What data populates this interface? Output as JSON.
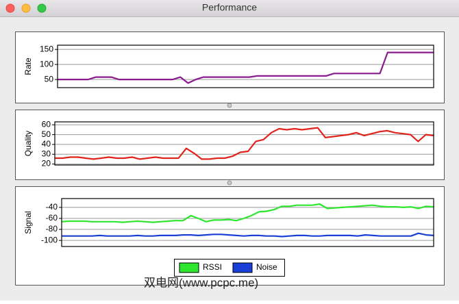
{
  "window": {
    "title": "Performance"
  },
  "watermark": "双电网(www.pcpc.me)",
  "chart_data": [
    {
      "type": "line",
      "ylabel": "Rate",
      "ylim": [
        23,
        164
      ],
      "yticks": [
        50,
        100,
        150
      ],
      "grid": true,
      "series": [
        {
          "name": "Rate",
          "color": "#8b1a8f",
          "values": [
            50,
            50,
            50,
            50,
            50,
            58,
            58,
            58,
            50,
            50,
            50,
            50,
            50,
            50,
            50,
            50,
            58,
            38,
            50,
            58,
            58,
            58,
            58,
            58,
            58,
            58,
            62,
            62,
            62,
            62,
            62,
            62,
            62,
            62,
            62,
            62,
            70,
            70,
            70,
            70,
            70,
            70,
            70,
            140,
            140,
            140,
            140,
            140,
            140,
            140
          ]
        }
      ]
    },
    {
      "type": "line",
      "ylabel": "Quality",
      "ylim": [
        19,
        63
      ],
      "yticks": [
        20,
        30,
        40,
        50,
        60
      ],
      "grid": true,
      "series": [
        {
          "name": "Quality",
          "color": "#e0231b",
          "values": [
            26,
            26,
            27,
            27,
            26,
            25,
            26,
            27,
            26,
            26,
            27,
            25,
            26,
            27,
            26,
            26,
            26,
            36,
            31,
            25,
            25,
            26,
            26,
            28,
            32,
            33,
            43,
            45,
            52,
            56,
            55,
            56,
            55,
            56,
            57,
            47,
            48,
            49,
            50,
            52,
            49,
            51,
            53,
            54,
            52,
            51,
            50,
            43,
            50,
            49
          ]
        }
      ]
    },
    {
      "type": "line",
      "ylabel": "Signal",
      "ylim": [
        -111,
        -24
      ],
      "yticks": [
        -40,
        -60,
        -80,
        -100
      ],
      "grid": true,
      "legend": "bottom",
      "series": [
        {
          "name": "RSSI",
          "color": "#2ee62e",
          "values": [
            -66,
            -65,
            -65,
            -65,
            -66,
            -66,
            -66,
            -66,
            -67,
            -66,
            -65,
            -66,
            -67,
            -66,
            -65,
            -64,
            -64,
            -55,
            -60,
            -66,
            -63,
            -63,
            -62,
            -64,
            -60,
            -55,
            -48,
            -47,
            -44,
            -38,
            -38,
            -36,
            -36,
            -36,
            -34,
            -42,
            -41,
            -40,
            -39,
            -38,
            -37,
            -36,
            -38,
            -39,
            -39,
            -40,
            -39,
            -42,
            -38,
            -39
          ]
        },
        {
          "name": "Noise",
          "color": "#1a3fd6",
          "values": [
            -92,
            -92,
            -92,
            -92,
            -92,
            -91,
            -92,
            -92,
            -92,
            -92,
            -91,
            -92,
            -92,
            -91,
            -91,
            -91,
            -90,
            -90,
            -91,
            -90,
            -89,
            -89,
            -90,
            -91,
            -92,
            -91,
            -91,
            -92,
            -92,
            -93,
            -92,
            -91,
            -91,
            -92,
            -92,
            -91,
            -91,
            -91,
            -91,
            -92,
            -90,
            -91,
            -92,
            -92,
            -92,
            -92,
            -92,
            -87,
            -90,
            -91
          ]
        }
      ]
    }
  ]
}
